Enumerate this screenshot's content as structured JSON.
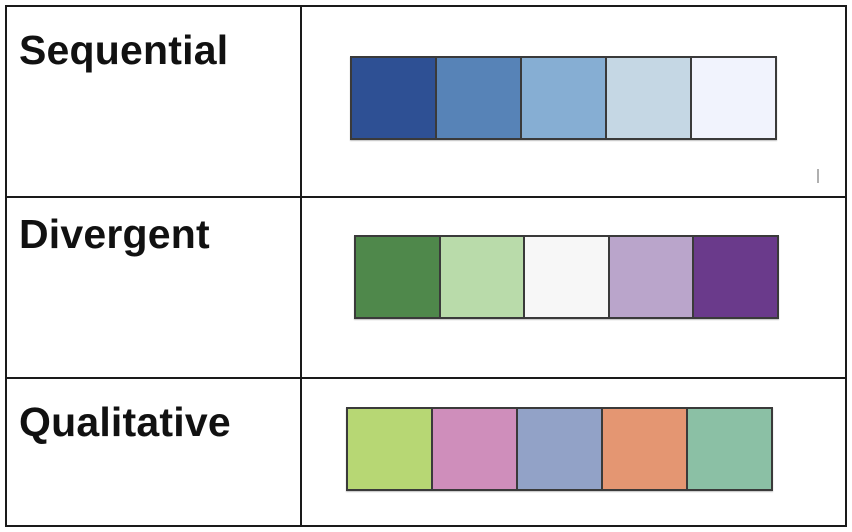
{
  "palettes": [
    {
      "label": "Sequential",
      "colors": [
        "#2e5094",
        "#5783b7",
        "#86aed3",
        "#c5d7e4",
        "#f1f3fd"
      ]
    },
    {
      "label": "Divergent",
      "colors": [
        "#4f884b",
        "#b9dbaa",
        "#f7f7f7",
        "#baa5cb",
        "#6a3a8b"
      ]
    },
    {
      "label": "Qualitative",
      "colors": [
        "#b7d774",
        "#cf8ebb",
        "#92a2c7",
        "#e49672",
        "#8bc0a5"
      ]
    }
  ]
}
